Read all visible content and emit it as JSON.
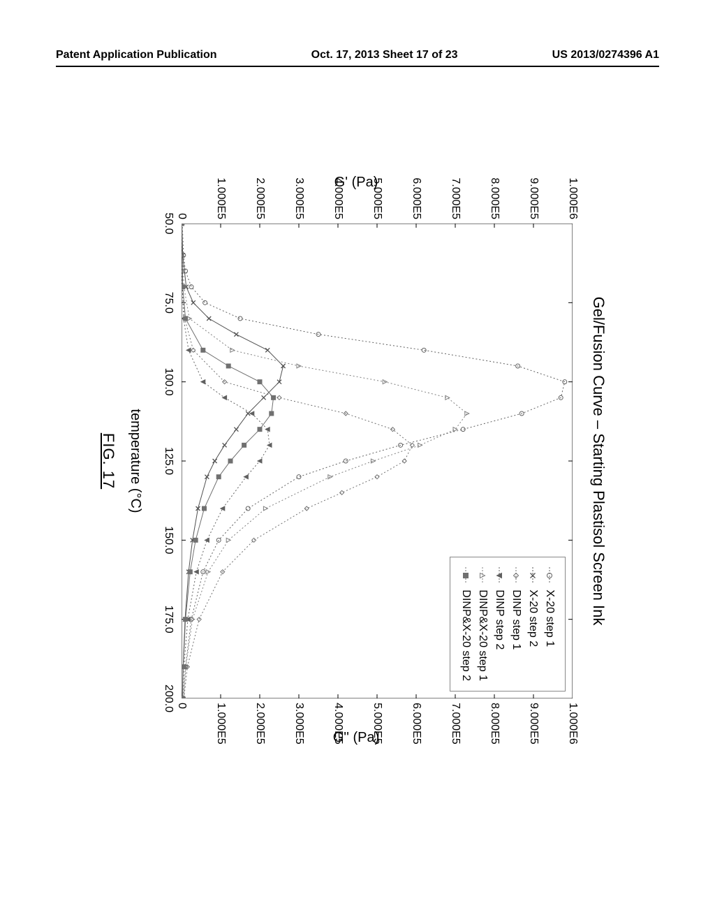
{
  "header": {
    "left": "Patent Application Publication",
    "center": "Oct. 17, 2013  Sheet 17 of 23",
    "right": "US 2013/0274396 A1"
  },
  "figure": {
    "label": "FIG. 17",
    "chart": {
      "type": "line",
      "title": "Gel/Fusion Curve – Starting Plastisol Screen Ink",
      "xlabel": "temperature (°C)",
      "ylabel_left": "G' (Pa)",
      "ylabel_right": "G'' (Pa)",
      "title_fontsize": 22,
      "label_fontsize": 20,
      "tick_fontsize": 16,
      "background_color": "#ffffff",
      "axis_color": "#000000",
      "grid_on": false,
      "x": {
        "min": 50.0,
        "max": 200.0,
        "ticks": [
          50.0,
          75.0,
          100.0,
          125.0,
          150.0,
          175.0,
          200.0
        ],
        "tick_labels": [
          "50.0",
          "75.0",
          "100.0",
          "125.0",
          "150.0",
          "175.0",
          "200.0"
        ]
      },
      "y_left": {
        "min": 0,
        "max": 1000000,
        "ticks": [
          0,
          100000,
          200000,
          300000,
          400000,
          500000,
          600000,
          700000,
          800000,
          900000,
          1000000
        ],
        "tick_labels": [
          "0",
          "1.000E5",
          "2.000E5",
          "3.000E5",
          "4.000E5",
          "5.000E5",
          "6.000E5",
          "7.000E5",
          "8.000E5",
          "9.000E5",
          "1.000E6"
        ]
      },
      "y_right": {
        "min": 0,
        "max": 1000000,
        "ticks": [
          0,
          100000,
          200000,
          300000,
          400000,
          500000,
          600000,
          700000,
          800000,
          900000,
          1000000
        ],
        "tick_labels": [
          "0",
          "1.000E5",
          "2.000E5",
          "3.000E5",
          "4.000E5",
          "5.000E5",
          "6.000E5",
          "7.000E5",
          "8.000E5",
          "9.000E5",
          "1.000E6"
        ]
      },
      "series": [
        {
          "name": "X-20 step 1",
          "axis": "left",
          "color": "#606060",
          "marker": "circle-open",
          "marker_size": 5,
          "linewidth": 1,
          "linestyle": "dotted",
          "x": [
            50,
            60,
            65,
            70,
            75,
            80,
            85,
            90,
            95,
            100,
            105,
            110,
            115,
            120,
            125,
            130,
            140,
            150,
            160,
            175,
            190,
            200
          ],
          "y": [
            2000,
            5000,
            10000,
            25000,
            60000,
            150000,
            350000,
            620000,
            860000,
            980000,
            970000,
            870000,
            720000,
            560000,
            420000,
            300000,
            170000,
            95000,
            55000,
            25000,
            10000,
            5000
          ]
        },
        {
          "name": "X-20 step 2",
          "axis": "right",
          "color": "#505050",
          "marker": "x",
          "marker_size": 5,
          "linewidth": 1,
          "linestyle": "solid",
          "x": [
            50,
            60,
            70,
            75,
            80,
            85,
            90,
            95,
            100,
            105,
            110,
            115,
            120,
            125,
            130,
            140,
            150,
            160,
            175,
            190,
            200
          ],
          "y": [
            1000,
            3000,
            12000,
            30000,
            70000,
            140000,
            220000,
            260000,
            250000,
            210000,
            170000,
            140000,
            110000,
            85000,
            65000,
            42000,
            28000,
            18000,
            9000,
            4000,
            2000
          ]
        },
        {
          "name": "DINP step 1",
          "axis": "left",
          "color": "#707070",
          "marker": "diamond-open",
          "marker_size": 5,
          "linewidth": 1,
          "linestyle": "dotted",
          "x": [
            50,
            70,
            80,
            90,
            100,
            105,
            110,
            115,
            120,
            125,
            130,
            135,
            140,
            150,
            160,
            175,
            190,
            200
          ],
          "y": [
            1000,
            3000,
            8000,
            30000,
            110000,
            250000,
            420000,
            540000,
            590000,
            570000,
            500000,
            410000,
            320000,
            185000,
            105000,
            45000,
            15000,
            6000
          ]
        },
        {
          "name": "DINP step 2",
          "axis": "right",
          "color": "#606060",
          "marker": "triangle-down",
          "marker_size": 5,
          "linewidth": 1,
          "linestyle": "dotted",
          "x": [
            50,
            70,
            80,
            90,
            100,
            105,
            110,
            115,
            120,
            125,
            130,
            140,
            150,
            160,
            175,
            190,
            200
          ],
          "y": [
            500,
            2000,
            5000,
            18000,
            55000,
            110000,
            180000,
            220000,
            225000,
            200000,
            165000,
            105000,
            65000,
            38000,
            16000,
            6000,
            3000
          ]
        },
        {
          "name": "DINP&X-20 step 1",
          "axis": "left",
          "color": "#808080",
          "marker": "triangle-up-open",
          "marker_size": 5,
          "linewidth": 1,
          "linestyle": "dotted",
          "x": [
            50,
            70,
            80,
            90,
            95,
            100,
            105,
            110,
            115,
            120,
            125,
            130,
            140,
            150,
            160,
            175,
            190,
            200
          ],
          "y": [
            1500,
            6000,
            20000,
            130000,
            300000,
            520000,
            680000,
            730000,
            700000,
            610000,
            490000,
            380000,
            215000,
            120000,
            68000,
            28000,
            11000,
            5000
          ]
        },
        {
          "name": "DINP&X-20 step 2",
          "axis": "right",
          "color": "#707070",
          "marker": "square-filled",
          "marker_size": 5,
          "linewidth": 1,
          "linestyle": "solid",
          "x": [
            50,
            70,
            80,
            90,
            95,
            100,
            105,
            110,
            115,
            120,
            125,
            130,
            140,
            150,
            160,
            175,
            190,
            200
          ],
          "y": [
            800,
            3000,
            10000,
            55000,
            120000,
            200000,
            235000,
            230000,
            200000,
            160000,
            125000,
            95000,
            58000,
            36000,
            22000,
            10000,
            4500,
            2500
          ]
        }
      ],
      "legend": {
        "position": "upper-right",
        "border_color": "#888888",
        "items": [
          {
            "label": "X-20 step 1",
            "marker": "circle-open",
            "color": "#606060"
          },
          {
            "label": "X-20 step 2",
            "marker": "x",
            "color": "#505050"
          },
          {
            "label": "DINP step 1",
            "marker": "diamond-open",
            "color": "#707070"
          },
          {
            "label": "DINP step 2",
            "marker": "triangle-down",
            "color": "#606060"
          },
          {
            "label": "DINP&X-20 step 1",
            "marker": "triangle-up-open",
            "color": "#808080"
          },
          {
            "label": "DINP&X-20 step 2",
            "marker": "square-filled",
            "color": "#707070"
          }
        ]
      }
    }
  }
}
